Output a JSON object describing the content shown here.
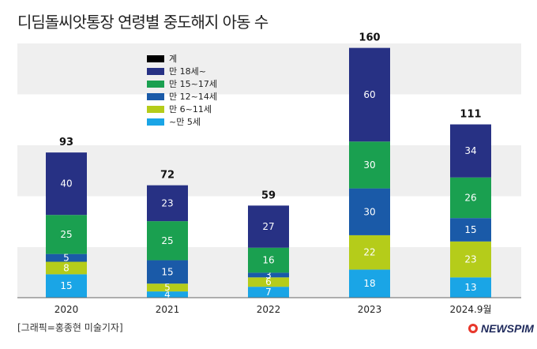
{
  "chart_data": {
    "type": "bar",
    "stacked": true,
    "title": "디딤돌씨앗통장 연령별 중도해지 아동 수",
    "categories": [
      "2020",
      "2021",
      "2022",
      "2023",
      "2024.9월"
    ],
    "series": [
      {
        "name": "~만 5세",
        "color": "#1aa5e6",
        "values": [
          15,
          4,
          7,
          18,
          13
        ]
      },
      {
        "name": "만 6~11세",
        "color": "#b5cc1a",
        "values": [
          8,
          5,
          6,
          22,
          23
        ]
      },
      {
        "name": "만 12~14세",
        "color": "#1a5aa8",
        "values": [
          5,
          15,
          3,
          30,
          15
        ]
      },
      {
        "name": "만 15~17세",
        "color": "#1aa050",
        "values": [
          25,
          25,
          16,
          30,
          26
        ]
      },
      {
        "name": "만 18세~",
        "color": "#273184",
        "values": [
          40,
          23,
          27,
          60,
          34
        ]
      }
    ],
    "totals": [
      93,
      72,
      59,
      160,
      111
    ],
    "total_label": "계",
    "total_color": "#000000",
    "legend_position": "top-left",
    "ylim": [
      0,
      175
    ]
  },
  "footer": {
    "credit": "[그래픽=홍종현 미술기자]",
    "brand": "NEWSPIM"
  }
}
